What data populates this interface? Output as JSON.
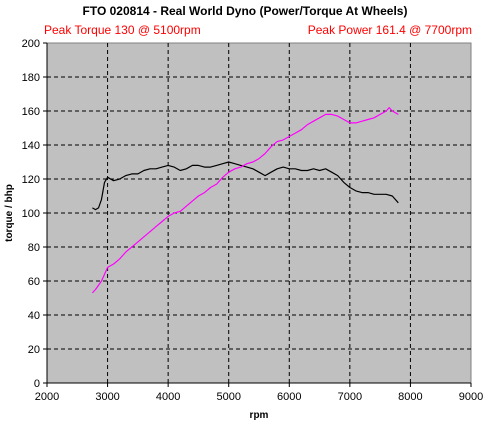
{
  "chart_data": {
    "type": "line",
    "title": "FTO 020814 - Real World Dyno (Power/Torque At Wheels)",
    "xlabel": "rpm",
    "ylabel": "torque / bhp",
    "xlim": [
      2000,
      9000
    ],
    "ylim": [
      0,
      200
    ],
    "x_ticks": [
      2000,
      3000,
      4000,
      5000,
      6000,
      7000,
      8000,
      9000
    ],
    "y_ticks": [
      0,
      20,
      40,
      60,
      80,
      100,
      120,
      140,
      160,
      180,
      200
    ],
    "grid": "dashed, horizontal and vertical",
    "plot_background": "#c0c0c0",
    "annotations": [
      {
        "text": "Peak Torque 130 @ 5100rpm",
        "position": "top-left",
        "color": "#ff0000"
      },
      {
        "text": "Peak Power 161.4 @ 7700rpm",
        "position": "top-right",
        "color": "#ff0000"
      }
    ],
    "series": [
      {
        "color": "#000000",
        "x": [
          2750,
          2800,
          2850,
          2900,
          2950,
          3000,
          3100,
          3200,
          3300,
          3400,
          3500,
          3600,
          3700,
          3800,
          3900,
          4000,
          4100,
          4200,
          4300,
          4400,
          4500,
          4600,
          4700,
          4800,
          4900,
          5000,
          5100,
          5200,
          5300,
          5400,
          5500,
          5600,
          5700,
          5800,
          5900,
          6000,
          6100,
          6200,
          6300,
          6400,
          6500,
          6600,
          6700,
          6800,
          6900,
          7000,
          7100,
          7200,
          7300,
          7400,
          7500,
          7600,
          7700,
          7800
        ],
        "values": [
          103,
          102,
          103,
          108,
          118,
          121,
          119,
          120,
          122,
          123,
          123,
          125,
          126,
          126,
          127,
          128,
          127,
          125,
          126,
          128,
          128,
          127,
          127,
          128,
          129,
          130,
          129,
          128,
          127,
          126,
          124,
          122,
          124,
          126,
          127,
          126,
          126,
          125,
          125,
          126,
          125,
          126,
          124,
          122,
          118,
          115,
          113,
          112,
          112,
          111,
          111,
          111,
          110,
          106
        ]
      },
      {
        "color": "#ff00ff",
        "x": [
          2750,
          2800,
          2900,
          3000,
          3100,
          3200,
          3300,
          3400,
          3500,
          3600,
          3700,
          3800,
          3900,
          4000,
          4100,
          4200,
          4300,
          4400,
          4500,
          4600,
          4700,
          4800,
          4900,
          5000,
          5100,
          5200,
          5300,
          5400,
          5500,
          5600,
          5700,
          5800,
          5900,
          6000,
          6100,
          6200,
          6300,
          6400,
          6500,
          6600,
          6700,
          6800,
          6900,
          7000,
          7100,
          7200,
          7300,
          7400,
          7500,
          7600,
          7650,
          7700,
          7800
        ],
        "values": [
          53,
          55,
          60,
          68,
          70,
          73,
          77,
          80,
          83,
          86,
          89,
          92,
          95,
          98,
          100,
          101,
          104,
          107,
          110,
          112,
          115,
          117,
          121,
          124,
          126,
          127,
          129,
          130,
          132,
          135,
          139,
          142,
          143,
          145,
          147,
          149,
          152,
          154,
          156,
          158,
          158,
          157,
          155,
          153,
          153,
          154,
          155,
          156,
          158,
          160,
          162,
          160,
          158
        ]
      }
    ]
  }
}
